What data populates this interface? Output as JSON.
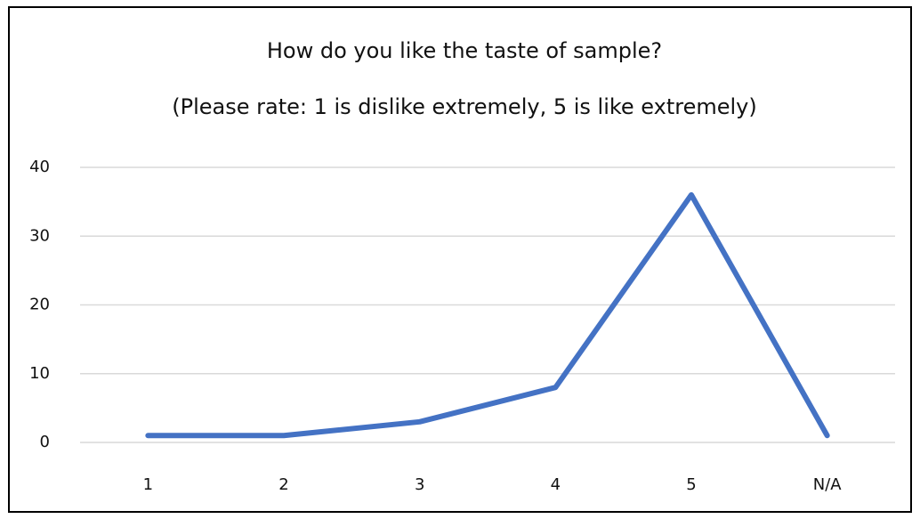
{
  "chart_data": {
    "type": "line",
    "title": "How do you like the taste of sample?",
    "subtitle": "(Please rate: 1 is dislike extremely, 5 is like extremely)",
    "categories": [
      "1",
      "2",
      "3",
      "4",
      "5",
      "N/A"
    ],
    "values": [
      1,
      1,
      3,
      8,
      36,
      1
    ],
    "color": "#4472c4",
    "ylim": [
      0,
      40
    ],
    "yticks": [
      0,
      10,
      20,
      30,
      40
    ],
    "grid": true
  }
}
